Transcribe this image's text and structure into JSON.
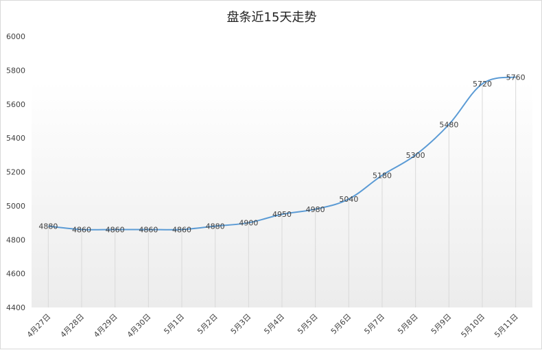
{
  "chart_data": {
    "type": "line",
    "title": "盘条近15天走势",
    "xlabel": "",
    "ylabel": "",
    "categories": [
      "4月27日",
      "4月28日",
      "4月29日",
      "4月30日",
      "5月1日",
      "5月2日",
      "5月3日",
      "5月4日",
      "5月5日",
      "5月6日",
      "5月7日",
      "5月8日",
      "5月9日",
      "5月10日",
      "5月11日"
    ],
    "values": [
      4880,
      4860,
      4860,
      4860,
      4860,
      4880,
      4900,
      4950,
      4980,
      5040,
      5180,
      5300,
      5480,
      5720,
      5760
    ],
    "ylim": [
      4400,
      6000
    ],
    "yticks": [
      4400,
      4600,
      4800,
      5000,
      5200,
      5400,
      5600,
      5800,
      6000
    ],
    "grid": "vertical drop lines",
    "legend": "none",
    "data_labels": true,
    "colors": {
      "line": "#5b9bd5",
      "plot_bg_top": "#ffffff",
      "plot_bg_bottom": "#ececec",
      "drop_line": "#d9d9d9"
    }
  }
}
